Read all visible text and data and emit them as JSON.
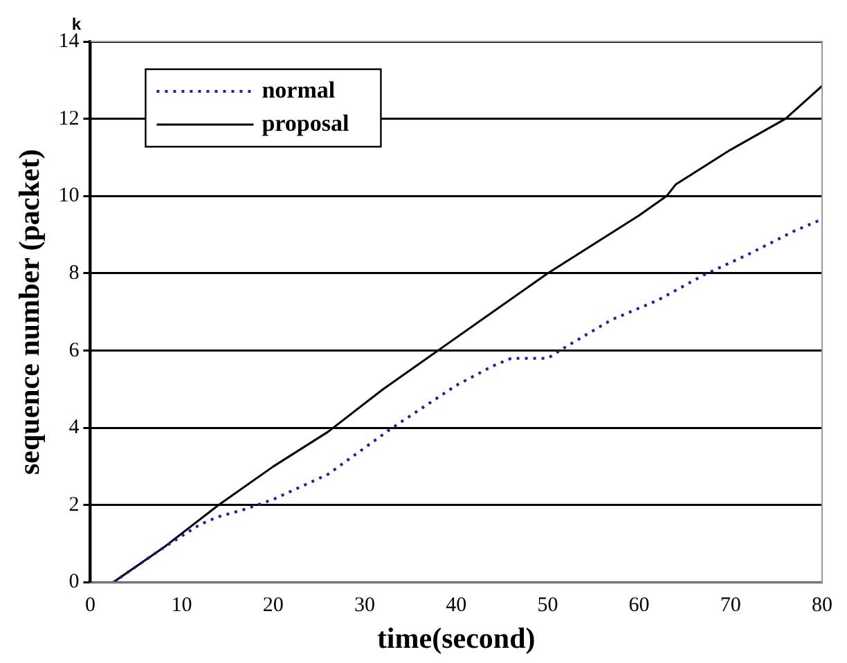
{
  "chart_data": {
    "type": "line",
    "xlabel": "time(second)",
    "ylabel": "sequence number (packet)",
    "annotations": [
      "k"
    ],
    "xlim": [
      0,
      80
    ],
    "xticks": [
      0,
      10,
      20,
      30,
      40,
      50,
      60,
      70,
      80
    ],
    "ylim": [
      0,
      14
    ],
    "yticks": [
      0,
      2,
      4,
      6,
      8,
      10,
      12,
      14
    ],
    "grid": "y",
    "legend": "top left",
    "marker": "none",
    "series": [
      {
        "name": "normal",
        "color": "#1f1f9f",
        "line_style": "dotted",
        "x": [
          2.5,
          8,
          12,
          14,
          17,
          20,
          26,
          33,
          40,
          44,
          46,
          50,
          52,
          57,
          62,
          67,
          72,
          77,
          80
        ],
        "values": [
          0,
          0.9,
          1.5,
          1.7,
          1.9,
          2.15,
          2.8,
          4.0,
          5.1,
          5.6,
          5.8,
          5.8,
          6.1,
          6.8,
          7.3,
          7.95,
          8.5,
          9.1,
          9.4
        ]
      },
      {
        "name": "proposal",
        "color": "#000000",
        "line_style": "solid",
        "x": [
          2.5,
          8,
          14,
          20,
          26,
          32,
          38,
          44,
          50,
          56,
          60,
          63,
          64,
          70,
          76,
          80
        ],
        "values": [
          0,
          0.9,
          2.0,
          3.0,
          3.9,
          5.0,
          6.0,
          7.0,
          8.0,
          8.9,
          9.5,
          10.0,
          10.3,
          11.2,
          12.0,
          12.85
        ]
      }
    ]
  }
}
